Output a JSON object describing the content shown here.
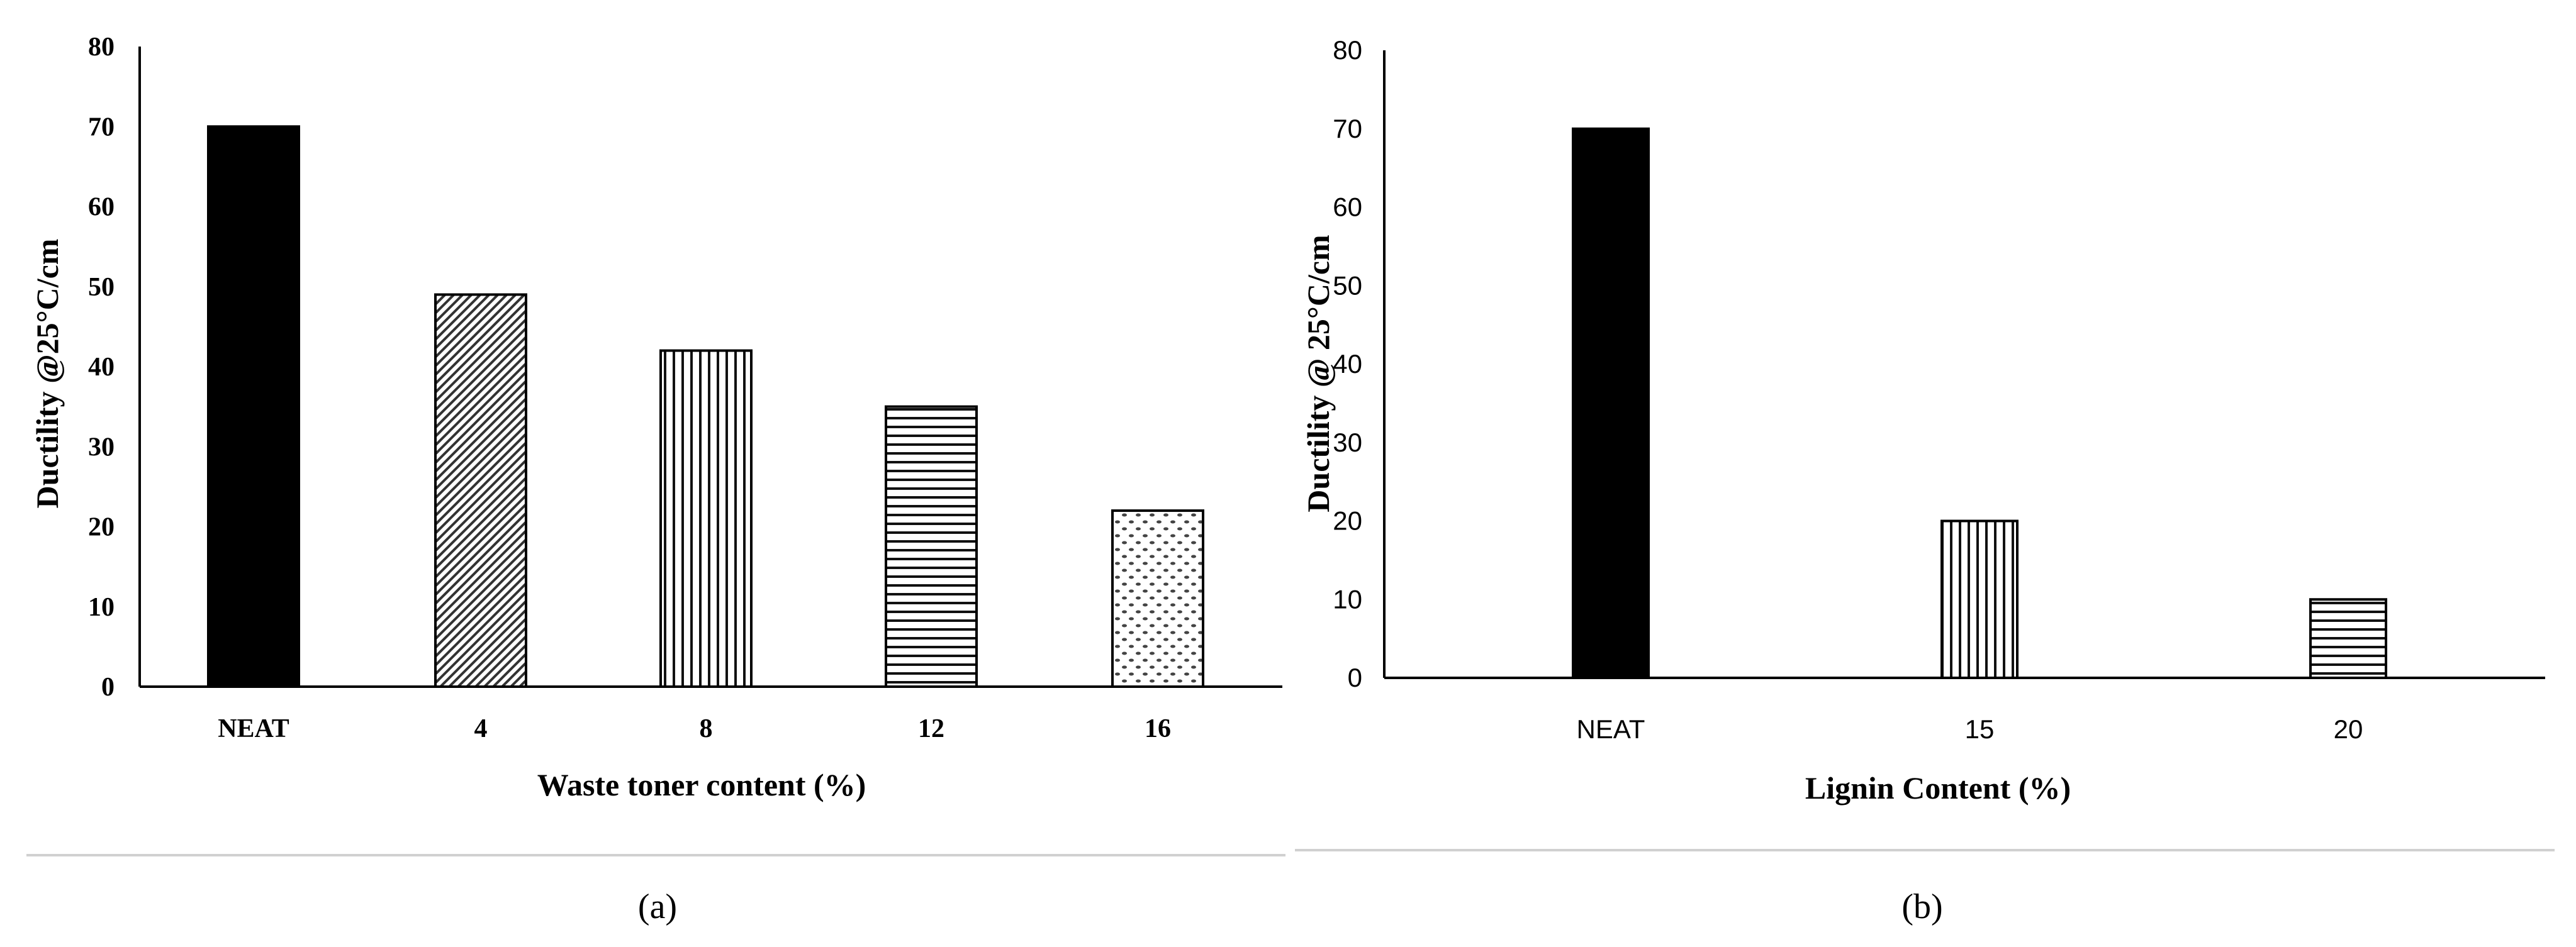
{
  "chart_data": [
    {
      "type": "bar",
      "panel_label": "(a)",
      "categories": [
        "NEAT",
        "4",
        "8",
        "12",
        "16"
      ],
      "values": [
        70,
        49,
        42,
        35,
        22
      ],
      "xlabel": "Waste toner content (%)",
      "ylabel": "Ductility @25°C/cm",
      "ylim": [
        0,
        80
      ],
      "yticks": [
        "0",
        "10",
        "20",
        "30",
        "40",
        "50",
        "60",
        "70",
        "80"
      ],
      "grid": false,
      "legend": "none",
      "fills": [
        "solid-black",
        "diagonal-hatch",
        "vertical-lines",
        "horizontal-lines",
        "dotted"
      ]
    },
    {
      "type": "bar",
      "panel_label": "(b)",
      "categories": [
        "NEAT",
        "15",
        "20"
      ],
      "values": [
        70,
        20,
        10
      ],
      "xlabel": "Lignin Content (%)",
      "ylabel": "Ductility @ 25°C/cm",
      "ylim": [
        0,
        80
      ],
      "yticks": [
        "0",
        "10",
        "20",
        "30",
        "40",
        "50",
        "60",
        "70",
        "80"
      ],
      "grid": false,
      "legend": "none",
      "fills": [
        "solid-black",
        "vertical-lines",
        "horizontal-lines"
      ]
    }
  ]
}
